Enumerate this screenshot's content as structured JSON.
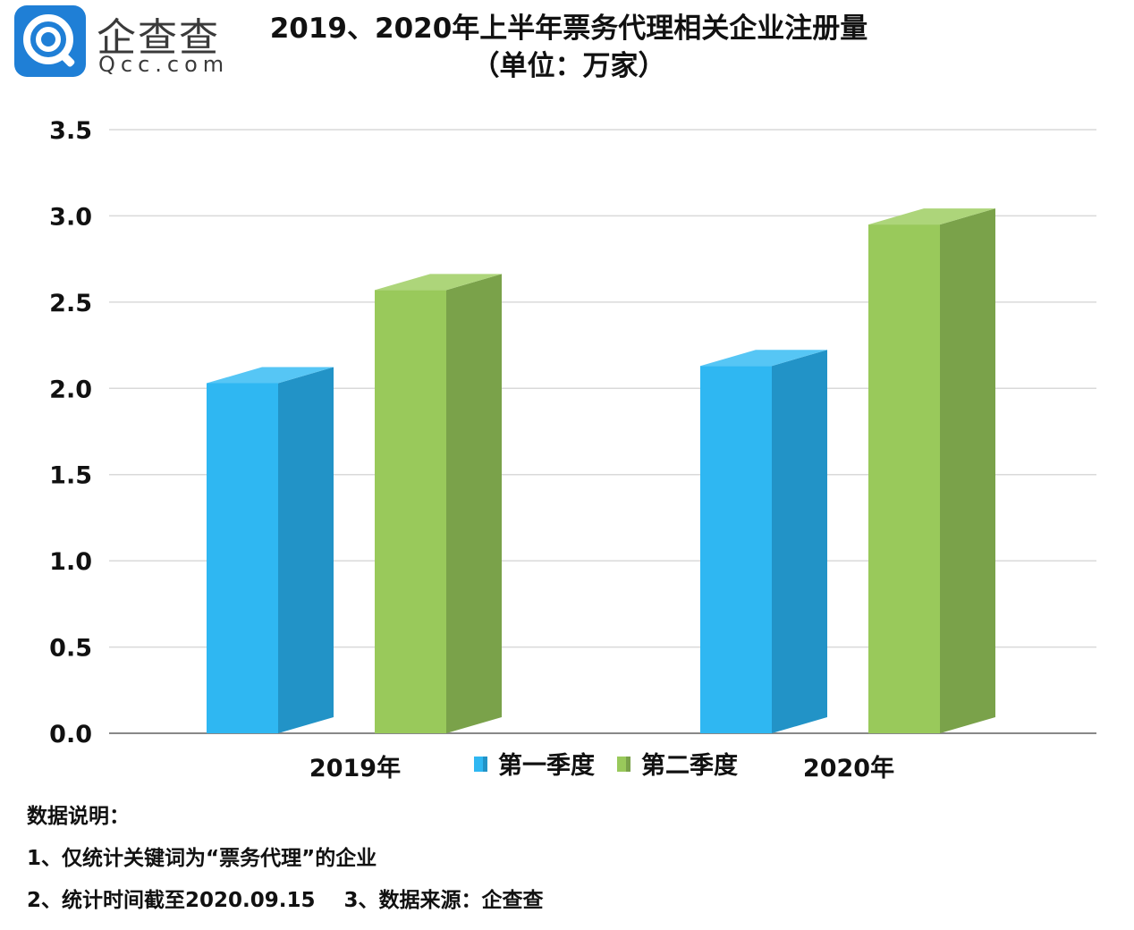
{
  "logo": {
    "name_cn": "企查查",
    "name_en": "Qcc.com"
  },
  "header": {
    "title": "2019、2020年上半年票务代理相关企业注册量",
    "subtitle": "（单位：万家）"
  },
  "colors": {
    "q1_front": "#2fb7f2",
    "q1_side": "#2293c7",
    "q1_top": "#56c6f5",
    "q2_front": "#99c95b",
    "q2_side": "#7aa24a",
    "q2_top": "#add57a",
    "grid": "#d9d9d9",
    "axis": "#888888"
  },
  "chart_data": {
    "type": "bar",
    "title": "2019、2020年上半年票务代理相关企业注册量",
    "subtitle": "（单位：万家）",
    "categories": [
      "2019年",
      "2020年"
    ],
    "series": [
      {
        "name": "第一季度",
        "values": [
          2.03,
          2.13
        ]
      },
      {
        "name": "第二季度",
        "values": [
          2.57,
          2.95
        ]
      }
    ],
    "ylim": [
      0,
      3.5
    ],
    "yticks": [
      "0.0",
      "0.5",
      "1.0",
      "1.5",
      "2.0",
      "2.5",
      "3.0",
      "3.5"
    ],
    "grid": true,
    "legend_position": "bottom-center",
    "xlabel": "",
    "ylabel": ""
  },
  "notes": {
    "heading": "数据说明：",
    "line1": "1、仅统计关键词为“票务代理”的企业",
    "line2": "2、统计时间截至2020.09.15    3、数据来源：企查查"
  }
}
